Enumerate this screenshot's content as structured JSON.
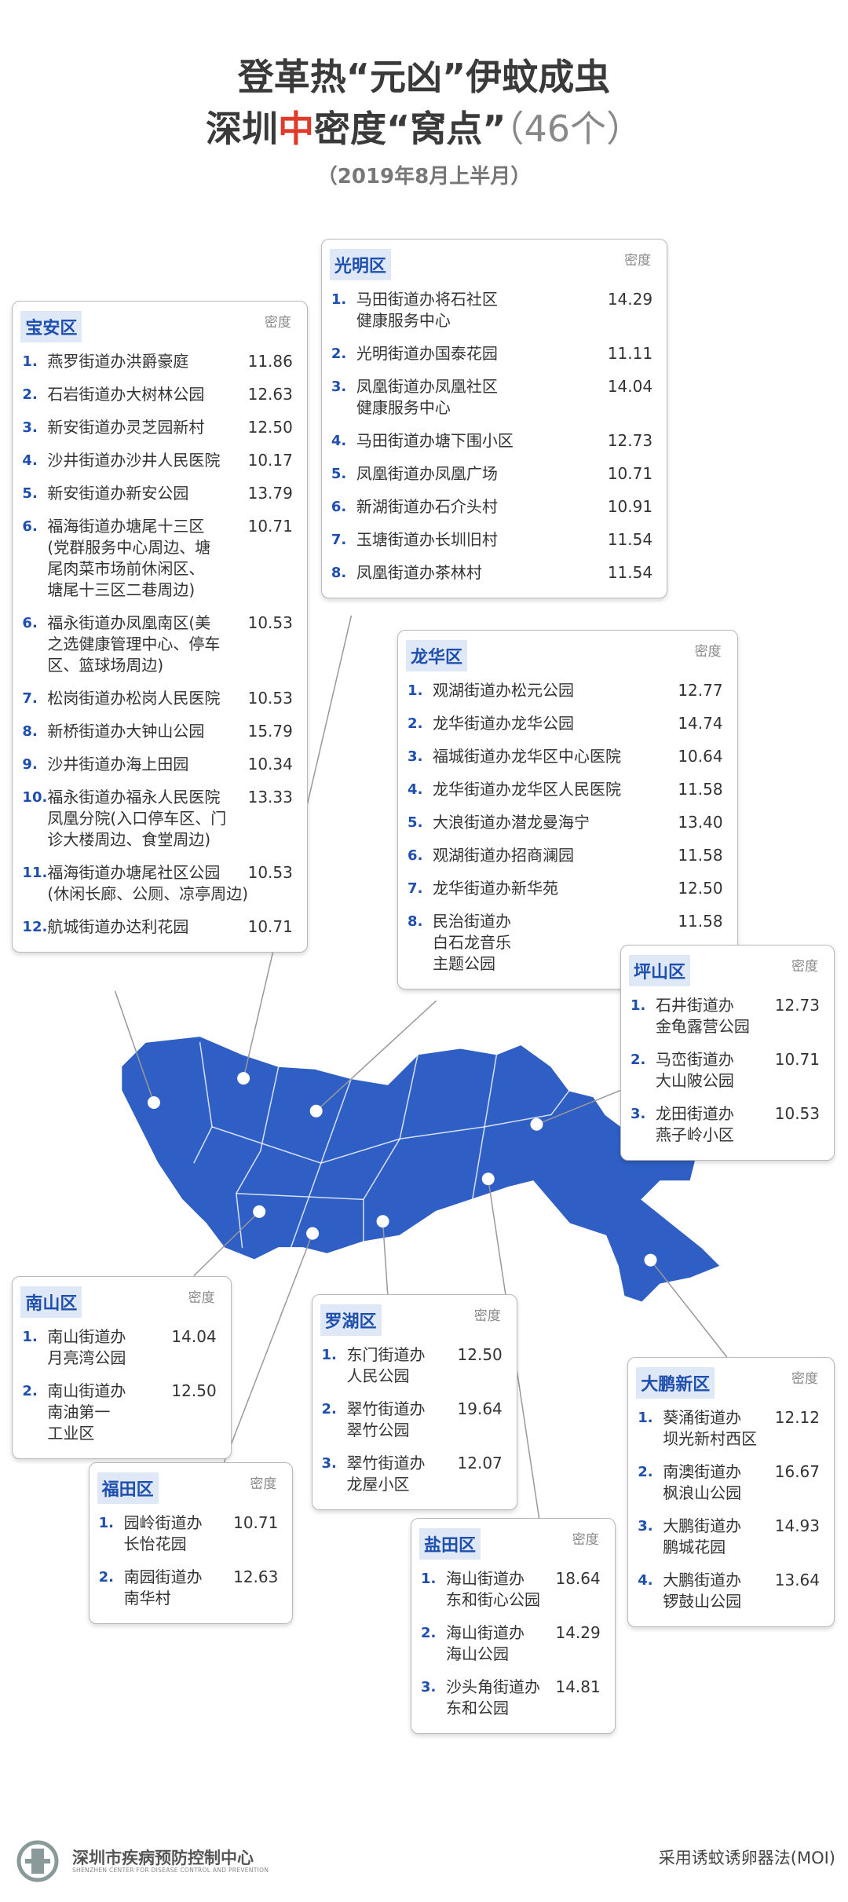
{
  "header": {
    "title_line1": "登革热“元凶”伊蚊成虫",
    "title_line2": {
      "a": "深圳",
      "b": "中",
      "c": "密度“窝点”",
      "d": "（46个）"
    },
    "subtitle": "（2019年8月上半月）"
  },
  "districts": [
    {
      "name": "宝安区",
      "column": "密度",
      "items": [
        {
          "num": "1.",
          "name": [
            "燕罗街道办洪爵豪庭"
          ],
          "value": "11.86"
        },
        {
          "num": "2.",
          "name": [
            "石岩街道办大树林公园"
          ],
          "value": "12.63"
        },
        {
          "num": "3.",
          "name": [
            "新安街道办灵芝园新村"
          ],
          "value": "12.50"
        },
        {
          "num": "4.",
          "name": [
            "沙井街道办沙井人民医院"
          ],
          "value": "10.17"
        },
        {
          "num": "5.",
          "name": [
            "新安街道办新安公园"
          ],
          "value": "13.79"
        },
        {
          "num": "6.",
          "name": [
            "福海街道办塘尾十三区",
            "(党群服务中心周边、塘",
            "尾肉菜市场前休闲区、",
            "塘尾十三区二巷周边)"
          ],
          "value": "10.71"
        },
        {
          "num": "6.",
          "name": [
            "福永街道办凤凰南区(美",
            "之选健康管理中心、停车",
            "区、篮球场周边)"
          ],
          "value": "10.53"
        },
        {
          "num": "7.",
          "name": [
            "松岗街道办松岗人民医院"
          ],
          "value": "10.53"
        },
        {
          "num": "8.",
          "name": [
            "新桥街道办大钟山公园"
          ],
          "value": "15.79"
        },
        {
          "num": "9.",
          "name": [
            "沙井街道办海上田园"
          ],
          "value": "10.34"
        },
        {
          "num": "10.",
          "name": [
            "福永街道办福永人民医院",
            "凤凰分院(入口停车区、门",
            "诊大楼周边、食堂周边)"
          ],
          "value": "13.33"
        },
        {
          "num": "11.",
          "name": [
            "福海街道办塘尾社区公园",
            "(休闲长廊、公厕、凉亭周边)"
          ],
          "value": "10.53"
        },
        {
          "num": "12.",
          "name": [
            "航城街道办达利花园"
          ],
          "value": "10.71"
        }
      ]
    },
    {
      "name": "光明区",
      "column": "密度",
      "items": [
        {
          "num": "1.",
          "name": [
            "马田街道办将石社区",
            "健康服务中心"
          ],
          "value": "14.29"
        },
        {
          "num": "2.",
          "name": [
            "光明街道办国泰花园"
          ],
          "value": "11.11"
        },
        {
          "num": "3.",
          "name": [
            "凤凰街道办凤凰社区",
            "健康服务中心"
          ],
          "value": "14.04"
        },
        {
          "num": "4.",
          "name": [
            "马田街道办塘下围小区"
          ],
          "value": "12.73"
        },
        {
          "num": "5.",
          "name": [
            "凤凰街道办凤凰广场"
          ],
          "value": "10.71"
        },
        {
          "num": "6.",
          "name": [
            "新湖街道办石介头村"
          ],
          "value": "10.91"
        },
        {
          "num": "7.",
          "name": [
            "玉塘街道办长圳旧村"
          ],
          "value": "11.54"
        },
        {
          "num": "8.",
          "name": [
            "凤凰街道办茶林村"
          ],
          "value": "11.54"
        }
      ]
    },
    {
      "name": "龙华区",
      "column": "密度",
      "items": [
        {
          "num": "1.",
          "name": [
            "观湖街道办松元公园"
          ],
          "value": "12.77"
        },
        {
          "num": "2.",
          "name": [
            "龙华街道办龙华公园"
          ],
          "value": "14.74"
        },
        {
          "num": "3.",
          "name": [
            "福城街道办龙华区中心医院"
          ],
          "value": "10.64"
        },
        {
          "num": "4.",
          "name": [
            "龙华街道办龙华区人民医院"
          ],
          "value": "11.58"
        },
        {
          "num": "5.",
          "name": [
            "大浪街道办潜龙曼海宁"
          ],
          "value": "13.40"
        },
        {
          "num": "6.",
          "name": [
            "观湖街道办招商澜园"
          ],
          "value": "11.58"
        },
        {
          "num": "7.",
          "name": [
            "龙华街道办新华苑"
          ],
          "value": "12.50"
        },
        {
          "num": "8.",
          "name": [
            "民治街道办",
            "白石龙音乐",
            "主题公园"
          ],
          "value": "11.58"
        }
      ]
    },
    {
      "name": "坪山区",
      "column": "密度",
      "items": [
        {
          "num": "1.",
          "name": [
            "石井街道办",
            "金龟露营公园"
          ],
          "value": "12.73"
        },
        {
          "num": "2.",
          "name": [
            "马峦街道办",
            "大山陂公园"
          ],
          "value": "10.71"
        },
        {
          "num": "3.",
          "name": [
            "龙田街道办",
            "燕子岭小区"
          ],
          "value": "10.53"
        }
      ]
    },
    {
      "name": "南山区",
      "column": "密度",
      "items": [
        {
          "num": "1.",
          "name": [
            "南山街道办",
            "月亮湾公园"
          ],
          "value": "14.04"
        },
        {
          "num": "2.",
          "name": [
            "南山街道办",
            "南油第一",
            "工业区"
          ],
          "value": "12.50"
        }
      ]
    },
    {
      "name": "福田区",
      "column": "密度",
      "items": [
        {
          "num": "1.",
          "name": [
            "园岭街道办",
            "长怡花园"
          ],
          "value": "10.71"
        },
        {
          "num": "2.",
          "name": [
            "南园街道办",
            "南华村"
          ],
          "value": "12.63"
        }
      ]
    },
    {
      "name": "罗湖区",
      "column": "密度",
      "items": [
        {
          "num": "1.",
          "name": [
            "东门街道办",
            "人民公园"
          ],
          "value": "12.50"
        },
        {
          "num": "2.",
          "name": [
            "翠竹街道办",
            "翠竹公园"
          ],
          "value": "19.64"
        },
        {
          "num": "3.",
          "name": [
            "翠竹街道办",
            "龙屋小区"
          ],
          "value": "12.07"
        }
      ]
    },
    {
      "name": "盐田区",
      "column": "密度",
      "items": [
        {
          "num": "1.",
          "name": [
            "海山街道办",
            "东和街心公园"
          ],
          "value": "18.64"
        },
        {
          "num": "2.",
          "name": [
            "海山街道办",
            "海山公园"
          ],
          "value": "14.29"
        },
        {
          "num": "3.",
          "name": [
            "沙头角街道办",
            "东和公园"
          ],
          "value": "14.81"
        }
      ]
    },
    {
      "name": "大鹏新区",
      "column": "密度",
      "items": [
        {
          "num": "1.",
          "name": [
            "葵涌街道办",
            "坝光新村西区"
          ],
          "value": "12.12"
        },
        {
          "num": "2.",
          "name": [
            "南澳街道办",
            "枫浪山公园"
          ],
          "value": "16.67"
        },
        {
          "num": "3.",
          "name": [
            "大鹏街道办",
            "鹏城花园"
          ],
          "value": "14.93"
        },
        {
          "num": "4.",
          "name": [
            "大鹏街道办",
            "锣鼓山公园"
          ],
          "value": "13.64"
        }
      ]
    }
  ],
  "footer": {
    "org": "深圳市疾病预防控制中心",
    "org_en": "SHENZHEN CENTER FOR DISEASE CONTROL AND PREVENTION",
    "method": "采用诱蚊诱卵器法(MOI)"
  }
}
